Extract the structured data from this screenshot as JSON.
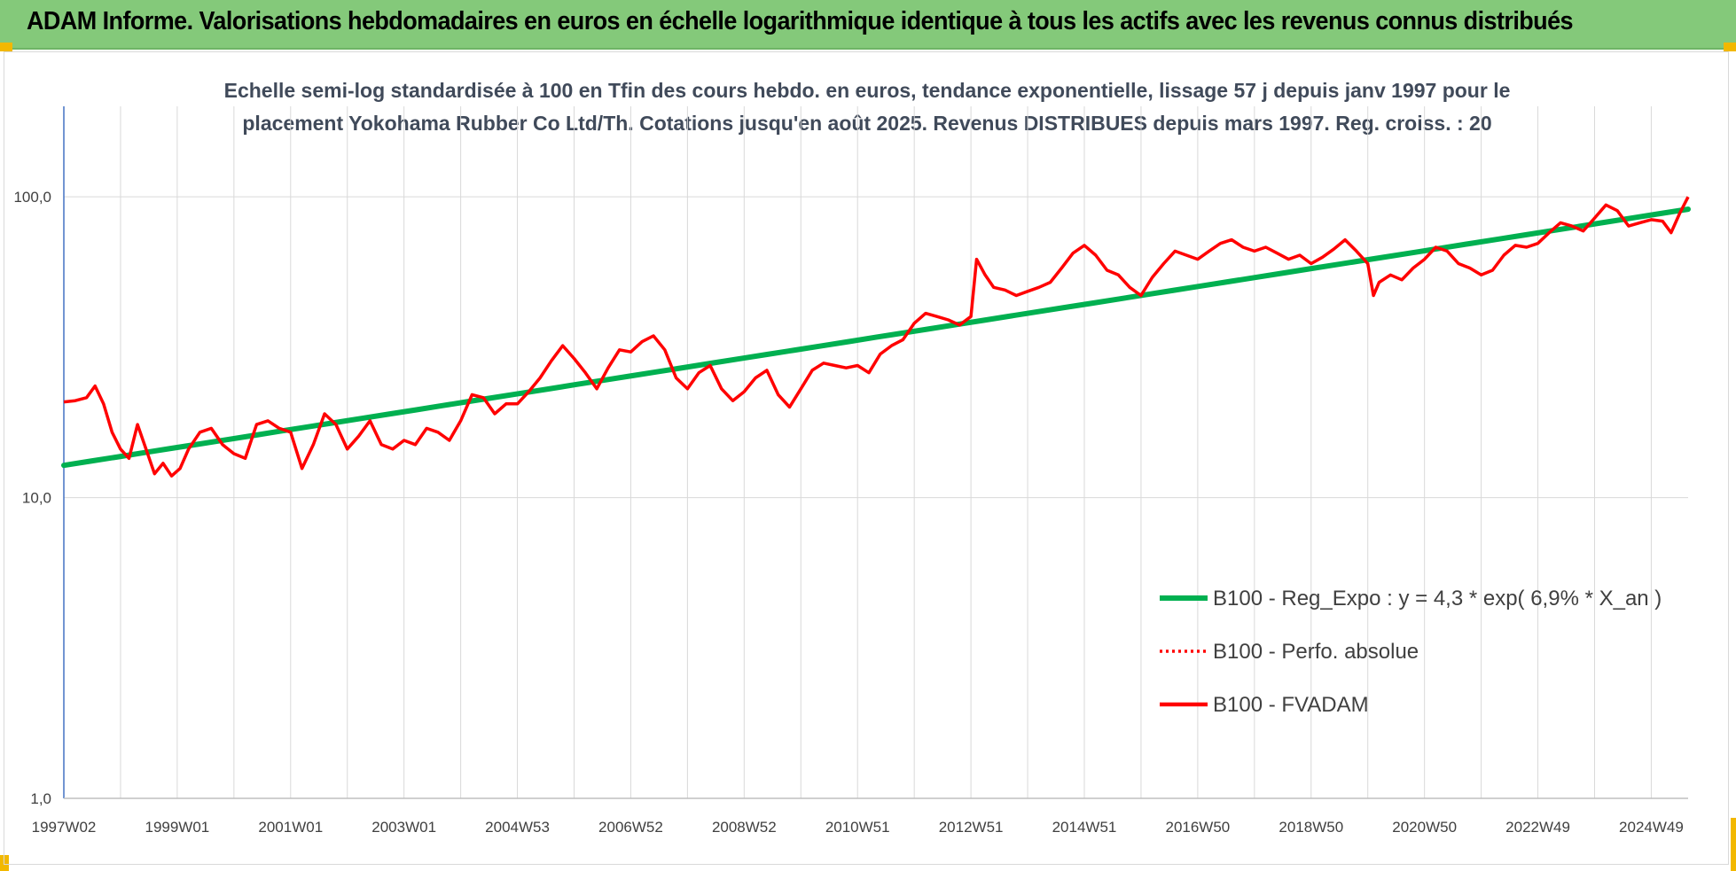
{
  "header": {
    "title": "ADAM Informe. Valorisations hebdomadaires en euros en échelle logarithmique identique à tous les actifs avec les revenus connus distribués"
  },
  "colors": {
    "header_bg": "#84c97a",
    "trend": "#00b050",
    "fvadam": "#ff0000",
    "perfo": "#ff0000",
    "grid": "#d9d9d9",
    "axis": "#4472c4",
    "corner_accent": "#f2b800"
  },
  "chart_data": {
    "type": "line",
    "title_lines": [
      "Echelle semi-log standardisée à 100 en Tfin des cours hebdo. en euros, tendance exponentielle, lissage 57 j depuis janv 1997 pour le",
      "placement Yokohama Rubber Co Ltd/Th. Cotations jusqu'en août 2025. Revenus DISTRIBUES depuis mars 1997. Reg. croiss. : 20"
    ],
    "y_scale": "log",
    "ylim": [
      1,
      200
    ],
    "y_ticks": [
      {
        "value": 1,
        "label": "1,0"
      },
      {
        "value": 10,
        "label": "10,0"
      },
      {
        "value": 100,
        "label": "100,0"
      }
    ],
    "xlim": [
      1997.0,
      2025.65
    ],
    "x_ticks": [
      {
        "value": 1997.0,
        "label": "1997W02"
      },
      {
        "value": 1999.0,
        "label": "1999W01"
      },
      {
        "value": 2001.0,
        "label": "2001W01"
      },
      {
        "value": 2003.0,
        "label": "2003W01"
      },
      {
        "value": 2005.0,
        "label": "2004W53"
      },
      {
        "value": 2007.0,
        "label": "2006W52"
      },
      {
        "value": 2009.0,
        "label": "2008W52"
      },
      {
        "value": 2011.0,
        "label": "2010W51"
      },
      {
        "value": 2013.0,
        "label": "2012W51"
      },
      {
        "value": 2015.0,
        "label": "2014W51"
      },
      {
        "value": 2017.0,
        "label": "2016W50"
      },
      {
        "value": 2019.0,
        "label": "2018W50"
      },
      {
        "value": 2021.0,
        "label": "2020W50"
      },
      {
        "value": 2023.0,
        "label": "2022W49"
      },
      {
        "value": 2025.0,
        "label": "2024W49"
      }
    ],
    "legend_position": "right-center",
    "grid": true,
    "series": [
      {
        "name": "B100 - Reg_Expo : y = 4,3 * exp( 6,9% *  X_an )",
        "style": "solid-thick",
        "x": [
          1997.0,
          2025.65
        ],
        "y": [
          12.8,
          91.0
        ]
      },
      {
        "name": "B100 - Perfo. absolue",
        "style": "dotted",
        "x": [],
        "y": []
      },
      {
        "name": "B100 - FVADAM",
        "style": "solid",
        "x": [
          1997.0,
          1997.2,
          1997.4,
          1997.55,
          1997.7,
          1997.85,
          1998.0,
          1998.15,
          1998.3,
          1998.45,
          1998.6,
          1998.75,
          1998.9,
          1999.05,
          1999.2,
          1999.4,
          1999.6,
          1999.8,
          2000.0,
          2000.2,
          2000.4,
          2000.6,
          2000.8,
          2001.0,
          2001.2,
          2001.4,
          2001.6,
          2001.8,
          2002.0,
          2002.2,
          2002.4,
          2002.6,
          2002.8,
          2003.0,
          2003.2,
          2003.4,
          2003.6,
          2003.8,
          2004.0,
          2004.2,
          2004.4,
          2004.6,
          2004.8,
          2005.0,
          2005.2,
          2005.4,
          2005.6,
          2005.8,
          2006.0,
          2006.2,
          2006.4,
          2006.6,
          2006.8,
          2007.0,
          2007.2,
          2007.4,
          2007.6,
          2007.8,
          2008.0,
          2008.2,
          2008.4,
          2008.6,
          2008.8,
          2009.0,
          2009.2,
          2009.4,
          2009.6,
          2009.8,
          2010.0,
          2010.2,
          2010.4,
          2010.6,
          2010.8,
          2011.0,
          2011.2,
          2011.4,
          2011.6,
          2011.8,
          2012.0,
          2012.2,
          2012.4,
          2012.6,
          2012.8,
          2013.0,
          2013.1,
          2013.25,
          2013.4,
          2013.6,
          2013.8,
          2014.0,
          2014.2,
          2014.4,
          2014.6,
          2014.8,
          2015.0,
          2015.2,
          2015.4,
          2015.6,
          2015.8,
          2016.0,
          2016.2,
          2016.4,
          2016.6,
          2016.8,
          2017.0,
          2017.2,
          2017.4,
          2017.6,
          2017.8,
          2018.0,
          2018.2,
          2018.4,
          2018.6,
          2018.8,
          2019.0,
          2019.2,
          2019.4,
          2019.6,
          2019.8,
          2020.0,
          2020.1,
          2020.2,
          2020.4,
          2020.6,
          2020.8,
          2021.0,
          2021.2,
          2021.4,
          2021.6,
          2021.8,
          2022.0,
          2022.2,
          2022.4,
          2022.6,
          2022.8,
          2023.0,
          2023.2,
          2023.4,
          2023.6,
          2023.8,
          2024.0,
          2024.2,
          2024.4,
          2024.6,
          2024.8,
          2025.0,
          2025.2,
          2025.35,
          2025.5,
          2025.65
        ],
        "y": [
          20.8,
          21.0,
          21.5,
          23.5,
          20.5,
          16.5,
          14.5,
          13.5,
          17.5,
          14.5,
          12.0,
          13.0,
          11.8,
          12.5,
          14.5,
          16.5,
          17.0,
          15.0,
          14.0,
          13.5,
          17.5,
          18.0,
          17.0,
          16.5,
          12.5,
          15.0,
          19.0,
          17.5,
          14.5,
          16.0,
          18.0,
          15.0,
          14.5,
          15.5,
          15.0,
          17.0,
          16.5,
          15.5,
          18.0,
          22.0,
          21.5,
          19.0,
          20.5,
          20.5,
          22.5,
          25.0,
          28.5,
          32.0,
          29.0,
          26.0,
          23.0,
          27.0,
          31.0,
          30.5,
          33.0,
          34.5,
          31.0,
          25.0,
          23.0,
          26.0,
          27.5,
          23.0,
          21.0,
          22.5,
          25.0,
          26.5,
          22.0,
          20.0,
          23.0,
          26.5,
          28.0,
          27.5,
          27.0,
          27.5,
          26.0,
          30.0,
          32.0,
          33.5,
          38.0,
          41.0,
          40.0,
          39.0,
          37.5,
          40.0,
          62.0,
          55.0,
          50.0,
          49.0,
          47.0,
          48.5,
          50.0,
          52.0,
          58.0,
          65.0,
          69.0,
          64.0,
          57.0,
          55.0,
          50.0,
          47.0,
          54.0,
          60.0,
          66.0,
          64.0,
          62.0,
          66.0,
          70.0,
          72.0,
          68.0,
          66.0,
          68.0,
          65.0,
          62.0,
          64.0,
          60.0,
          63.0,
          67.0,
          72.0,
          66.0,
          60.0,
          47.0,
          52.0,
          55.0,
          53.0,
          58.0,
          62.0,
          68.0,
          66.0,
          60.0,
          58.0,
          55.0,
          57.0,
          64.0,
          69.0,
          68.0,
          70.0,
          76.0,
          82.0,
          80.0,
          77.0,
          85.0,
          94.0,
          90.0,
          80.0,
          82.0,
          84.0,
          83.0,
          76.0,
          88.0,
          100.0
        ]
      }
    ]
  }
}
